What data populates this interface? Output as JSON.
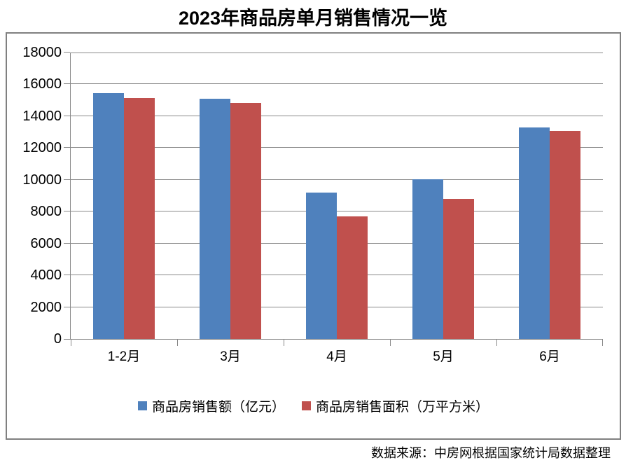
{
  "title": "2023年商品房单月销售情况一览",
  "source_note": "数据来源：中房网根据国家统计局数据整理",
  "colors": {
    "series_sales": "#4F81BD",
    "series_area": "#C0504D",
    "gridline": "#898989",
    "frame_border": "#808080",
    "text": "#000000"
  },
  "chart_data": {
    "type": "bar",
    "title": "2023年商品房单月销售情况一览",
    "categories": [
      "1-2月",
      "3月",
      "4月",
      "5月",
      "6月"
    ],
    "series": [
      {
        "name": "商品房销售额（亿元）",
        "color": "#4F81BD",
        "values": [
          15449,
          15096,
          9205,
          10037,
          13305
        ]
      },
      {
        "name": "商品房销售面积（万平方米）",
        "color": "#C0504D",
        "values": [
          15133,
          14813,
          7690,
          8804,
          13075
        ]
      }
    ],
    "xlabel": "",
    "ylabel": "",
    "ylim": [
      0,
      18000
    ],
    "yticks": [
      0,
      2000,
      4000,
      6000,
      8000,
      10000,
      12000,
      14000,
      16000,
      18000
    ],
    "grid": true,
    "legend_position": "bottom"
  }
}
